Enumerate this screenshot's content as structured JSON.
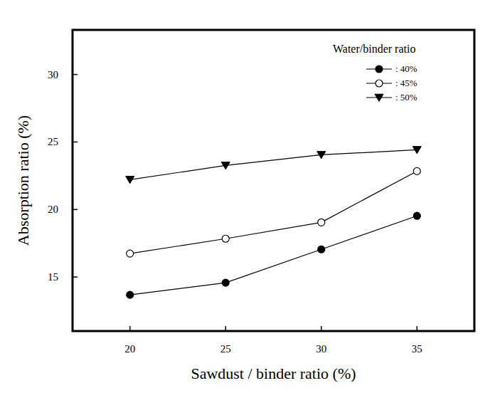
{
  "chart_data": {
    "type": "line",
    "x_label": "Sawdust / binder ratio (%)",
    "y_label": "Absorption ratio (%)",
    "legend_title": "Water/binder ratio",
    "legend": "upper right",
    "grid": false,
    "x": [
      20,
      25,
      30,
      35
    ],
    "xlim": [
      17,
      38
    ],
    "xticks": [
      20,
      25,
      30,
      35
    ],
    "ylim": [
      11,
      33.3
    ],
    "yticks": [
      15,
      20,
      25,
      30
    ],
    "series": [
      {
        "name": ": 40%",
        "color": "#000000",
        "marker": "circle",
        "line_style": "solid",
        "values": [
          13.68,
          14.58,
          17.05,
          19.53
        ]
      },
      {
        "name": ": 45%",
        "color": "#000000",
        "marker": "open_circle",
        "line_style": "solid",
        "values": [
          16.74,
          17.84,
          19.05,
          22.84
        ]
      },
      {
        "name": ": 50%",
        "color": "#000000",
        "marker": "triangle_down",
        "line_style": "solid",
        "values": [
          22.21,
          23.26,
          24.05,
          24.42
        ]
      }
    ]
  }
}
